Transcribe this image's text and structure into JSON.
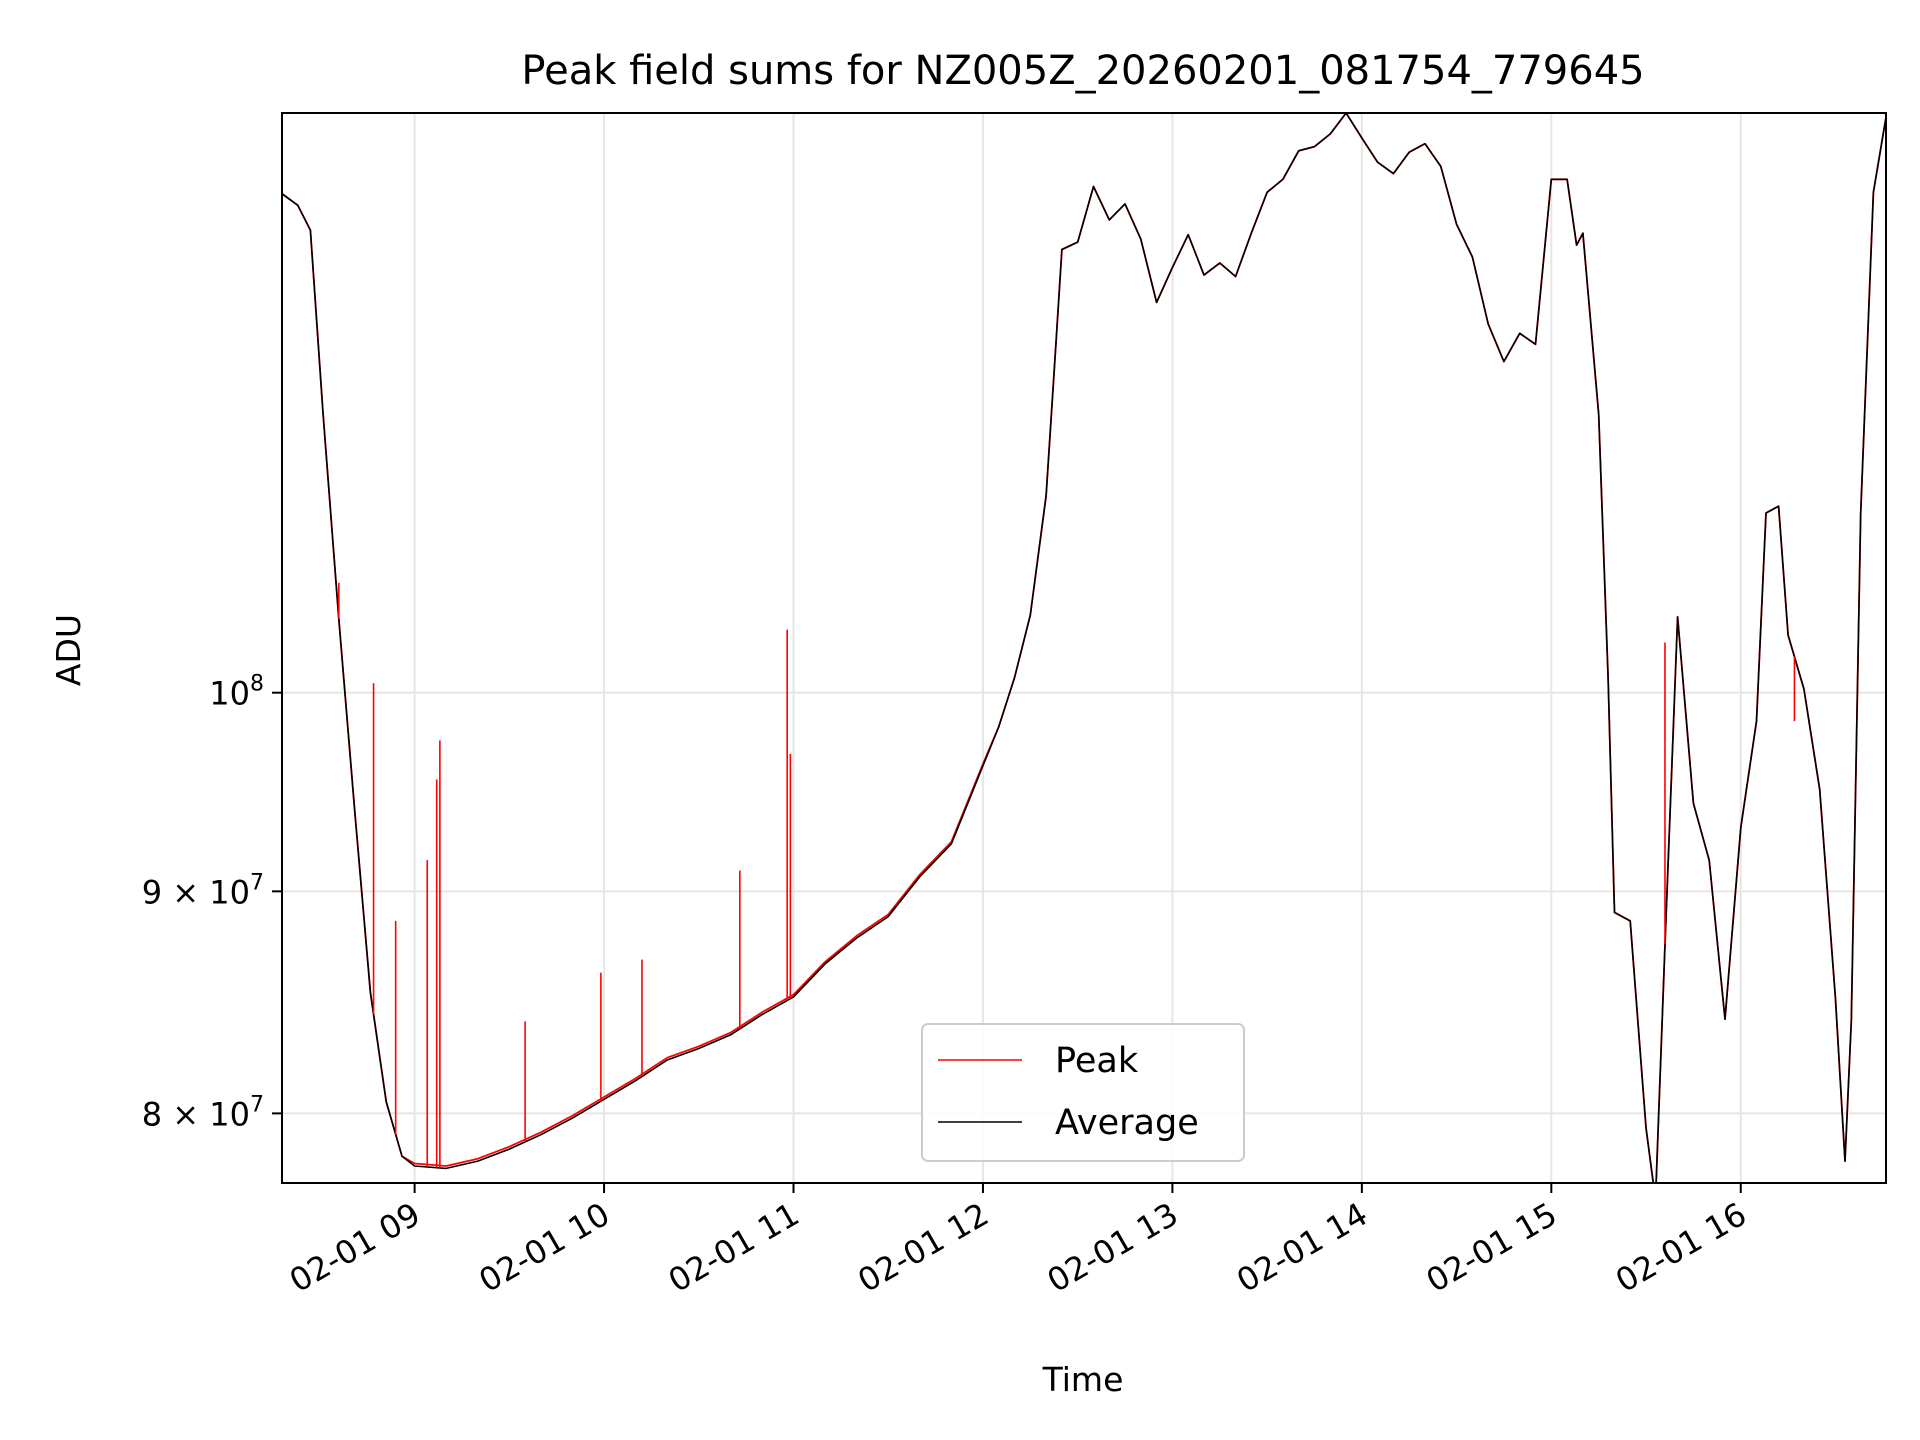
{
  "chart_data": {
    "type": "line",
    "title": "Peak field sums for NZ005Z_20260201_081754_779645",
    "xlabel": "Time",
    "ylabel": "ADU",
    "yscale": "log",
    "xlim": [
      "02-01 08:18",
      "02-01 16:46"
    ],
    "ylim": [
      77100000,
      136000000
    ],
    "grid": true,
    "legend_position": "lower center",
    "x_ticks": [
      {
        "value": "02-01 09:00",
        "label": "02-01 09"
      },
      {
        "value": "02-01 10:00",
        "label": "02-01 10"
      },
      {
        "value": "02-01 11:00",
        "label": "02-01 11"
      },
      {
        "value": "02-01 12:00",
        "label": "02-01 12"
      },
      {
        "value": "02-01 13:00",
        "label": "02-01 13"
      },
      {
        "value": "02-01 14:00",
        "label": "02-01 14"
      },
      {
        "value": "02-01 15:00",
        "label": "02-01 15"
      },
      {
        "value": "02-01 16:00",
        "label": "02-01 16"
      }
    ],
    "y_ticks": [
      {
        "value": 80000000,
        "label": "8 × 10",
        "exp": "7"
      },
      {
        "value": 90000000,
        "label": "9 × 10",
        "exp": "7"
      },
      {
        "value": 100000000,
        "label": "10",
        "exp": "8"
      }
    ],
    "series": [
      {
        "name": "Peak",
        "color": "#ff0000",
        "points": [
          [
            "02-01 08:18",
            130300000
          ],
          [
            "02-01 08:23",
            129500000
          ],
          [
            "02-01 08:27",
            127800000
          ],
          [
            "02-01 08:31",
            116000000
          ],
          [
            "02-01 08:36",
            104000000
          ],
          [
            "02-01 08:41",
            94000000
          ],
          [
            "02-01 08:46",
            85300000
          ],
          [
            "02-01 08:51",
            80500000
          ],
          [
            "02-01 08:56",
            78200000
          ],
          [
            "02-01 09:00",
            77900000
          ],
          [
            "02-01 09:10",
            77800000
          ],
          [
            "02-01 09:20",
            78100000
          ],
          [
            "02-01 09:30",
            78600000
          ],
          [
            "02-01 09:40",
            79200000
          ],
          [
            "02-01 09:50",
            79900000
          ],
          [
            "02-01 10:00",
            80700000
          ],
          [
            "02-01 10:10",
            81500000
          ],
          [
            "02-01 10:20",
            82400000
          ],
          [
            "02-01 10:30",
            82900000
          ],
          [
            "02-01 10:40",
            83500000
          ],
          [
            "02-01 10:50",
            84400000
          ],
          [
            "02-01 11:00",
            85200000
          ],
          [
            "02-01 11:10",
            86700000
          ],
          [
            "02-01 11:20",
            87900000
          ],
          [
            "02-01 11:30",
            88900000
          ],
          [
            "02-01 11:40",
            90800000
          ],
          [
            "02-01 11:50",
            92400000
          ],
          [
            "02-01 12:00",
            96300000
          ],
          [
            "02-01 12:05",
            98200000
          ],
          [
            "02-01 12:10",
            100800000
          ],
          [
            "02-01 12:15",
            104200000
          ],
          [
            "02-01 12:20",
            111000000
          ],
          [
            "02-01 12:23",
            120000000
          ],
          [
            "02-01 12:25",
            126500000
          ],
          [
            "02-01 12:30",
            127000000
          ],
          [
            "02-01 12:35",
            130800000
          ],
          [
            "02-01 12:40",
            128500000
          ],
          [
            "02-01 12:45",
            129600000
          ],
          [
            "02-01 12:50",
            127200000
          ],
          [
            "02-01 12:55",
            123000000
          ],
          [
            "02-01 13:00",
            125300000
          ],
          [
            "02-01 13:05",
            127500000
          ],
          [
            "02-01 13:10",
            124800000
          ],
          [
            "02-01 13:15",
            125600000
          ],
          [
            "02-01 13:20",
            124700000
          ],
          [
            "02-01 13:25",
            127600000
          ],
          [
            "02-01 13:30",
            130400000
          ],
          [
            "02-01 13:35",
            131300000
          ],
          [
            "02-01 13:40",
            133300000
          ],
          [
            "02-01 13:45",
            133600000
          ],
          [
            "02-01 13:50",
            134500000
          ],
          [
            "02-01 13:55",
            136000000
          ],
          [
            "02-01 14:00",
            134200000
          ],
          [
            "02-01 14:05",
            132500000
          ],
          [
            "02-01 14:10",
            131700000
          ],
          [
            "02-01 14:15",
            133200000
          ],
          [
            "02-01 14:20",
            133800000
          ],
          [
            "02-01 14:25",
            132200000
          ],
          [
            "02-01 14:30",
            128200000
          ],
          [
            "02-01 14:35",
            126000000
          ],
          [
            "02-01 14:40",
            121600000
          ],
          [
            "02-01 14:45",
            119200000
          ],
          [
            "02-01 14:50",
            121000000
          ],
          [
            "02-01 14:55",
            120300000
          ],
          [
            "02-01 15:00",
            131300000
          ],
          [
            "02-01 15:05",
            131300000
          ],
          [
            "02-01 15:08",
            126800000
          ],
          [
            "02-01 15:10",
            127600000
          ],
          [
            "02-01 15:15",
            115900000
          ],
          [
            "02-01 15:18",
            100800000
          ],
          [
            "02-01 15:20",
            89000000
          ],
          [
            "02-01 15:25",
            88600000
          ],
          [
            "02-01 15:30",
            79400000
          ],
          [
            "02-01 15:33",
            76400000
          ],
          [
            "02-01 15:36",
            87500000
          ],
          [
            "02-01 15:40",
            104100000
          ],
          [
            "02-01 15:45",
            94300000
          ],
          [
            "02-01 15:50",
            91500000
          ],
          [
            "02-01 15:55",
            84100000
          ],
          [
            "02-01 16:00",
            93100000
          ],
          [
            "02-01 16:05",
            98500000
          ],
          [
            "02-01 16:08",
            110000000
          ],
          [
            "02-01 16:12",
            110400000
          ],
          [
            "02-01 16:15",
            103100000
          ],
          [
            "02-01 16:20",
            100200000
          ],
          [
            "02-01 16:25",
            95000000
          ],
          [
            "02-01 16:30",
            85000000
          ],
          [
            "02-01 16:33",
            78000000
          ],
          [
            "02-01 16:35",
            84000000
          ],
          [
            "02-01 16:38",
            110000000
          ],
          [
            "02-01 16:42",
            130400000
          ],
          [
            "02-01 16:46",
            135700000
          ]
        ]
      },
      {
        "name": "Average",
        "color": "#000000",
        "points": [
          [
            "02-01 08:18",
            130300000
          ],
          [
            "02-01 08:23",
            129500000
          ],
          [
            "02-01 08:27",
            127800000
          ],
          [
            "02-01 08:31",
            116000000
          ],
          [
            "02-01 08:36",
            104000000
          ],
          [
            "02-01 08:41",
            94000000
          ],
          [
            "02-01 08:46",
            85300000
          ],
          [
            "02-01 08:51",
            80500000
          ],
          [
            "02-01 08:56",
            78200000
          ],
          [
            "02-01 09:00",
            77800000
          ],
          [
            "02-01 09:10",
            77700000
          ],
          [
            "02-01 09:20",
            78000000
          ],
          [
            "02-01 09:30",
            78500000
          ],
          [
            "02-01 09:40",
            79100000
          ],
          [
            "02-01 09:50",
            79800000
          ],
          [
            "02-01 10:00",
            80600000
          ],
          [
            "02-01 10:10",
            81400000
          ],
          [
            "02-01 10:20",
            82300000
          ],
          [
            "02-01 10:30",
            82800000
          ],
          [
            "02-01 10:40",
            83400000
          ],
          [
            "02-01 10:50",
            84300000
          ],
          [
            "02-01 11:00",
            85100000
          ],
          [
            "02-01 11:10",
            86600000
          ],
          [
            "02-01 11:20",
            87800000
          ],
          [
            "02-01 11:30",
            88800000
          ],
          [
            "02-01 11:40",
            90700000
          ],
          [
            "02-01 11:50",
            92300000
          ],
          [
            "02-01 12:00",
            96200000
          ],
          [
            "02-01 12:05",
            98200000
          ],
          [
            "02-01 12:10",
            100800000
          ],
          [
            "02-01 12:15",
            104200000
          ],
          [
            "02-01 12:20",
            111000000
          ],
          [
            "02-01 12:23",
            120000000
          ],
          [
            "02-01 12:25",
            126500000
          ],
          [
            "02-01 12:30",
            127000000
          ],
          [
            "02-01 12:35",
            130800000
          ],
          [
            "02-01 12:40",
            128500000
          ],
          [
            "02-01 12:45",
            129600000
          ],
          [
            "02-01 12:50",
            127200000
          ],
          [
            "02-01 12:55",
            123000000
          ],
          [
            "02-01 13:00",
            125300000
          ],
          [
            "02-01 13:05",
            127500000
          ],
          [
            "02-01 13:10",
            124800000
          ],
          [
            "02-01 13:15",
            125600000
          ],
          [
            "02-01 13:20",
            124700000
          ],
          [
            "02-01 13:25",
            127600000
          ],
          [
            "02-01 13:30",
            130400000
          ],
          [
            "02-01 13:35",
            131300000
          ],
          [
            "02-01 13:40",
            133300000
          ],
          [
            "02-01 13:45",
            133600000
          ],
          [
            "02-01 13:50",
            134500000
          ],
          [
            "02-01 13:55",
            136000000
          ],
          [
            "02-01 14:00",
            134200000
          ],
          [
            "02-01 14:05",
            132500000
          ],
          [
            "02-01 14:10",
            131700000
          ],
          [
            "02-01 14:15",
            133200000
          ],
          [
            "02-01 14:20",
            133800000
          ],
          [
            "02-01 14:25",
            132200000
          ],
          [
            "02-01 14:30",
            128200000
          ],
          [
            "02-01 14:35",
            126000000
          ],
          [
            "02-01 14:40",
            121600000
          ],
          [
            "02-01 14:45",
            119200000
          ],
          [
            "02-01 14:50",
            121000000
          ],
          [
            "02-01 14:55",
            120300000
          ],
          [
            "02-01 15:00",
            131300000
          ],
          [
            "02-01 15:05",
            131300000
          ],
          [
            "02-01 15:08",
            126800000
          ],
          [
            "02-01 15:10",
            127600000
          ],
          [
            "02-01 15:15",
            115900000
          ],
          [
            "02-01 15:18",
            100800000
          ],
          [
            "02-01 15:20",
            89000000
          ],
          [
            "02-01 15:25",
            88600000
          ],
          [
            "02-01 15:30",
            79400000
          ],
          [
            "02-01 15:33",
            76400000
          ],
          [
            "02-01 15:36",
            87500000
          ],
          [
            "02-01 15:40",
            104100000
          ],
          [
            "02-01 15:45",
            94300000
          ],
          [
            "02-01 15:50",
            91500000
          ],
          [
            "02-01 15:55",
            84100000
          ],
          [
            "02-01 16:00",
            93100000
          ],
          [
            "02-01 16:05",
            98500000
          ],
          [
            "02-01 16:08",
            110000000
          ],
          [
            "02-01 16:12",
            110400000
          ],
          [
            "02-01 16:15",
            103100000
          ],
          [
            "02-01 16:20",
            100200000
          ],
          [
            "02-01 16:25",
            95000000
          ],
          [
            "02-01 16:30",
            85000000
          ],
          [
            "02-01 16:33",
            78000000
          ],
          [
            "02-01 16:35",
            84000000
          ],
          [
            "02-01 16:38",
            110000000
          ],
          [
            "02-01 16:42",
            130400000
          ],
          [
            "02-01 16:46",
            135700000
          ]
        ]
      }
    ],
    "peak_spikes": [
      [
        "02-01 08:36",
        106000000
      ],
      [
        "02-01 08:47",
        100500000
      ],
      [
        "02-01 08:54",
        88600000
      ],
      [
        "02-01 09:04",
        91500000
      ],
      [
        "02-01 09:07",
        95500000
      ],
      [
        "02-01 09:08",
        97500000
      ],
      [
        "02-01 09:35",
        84000000
      ],
      [
        "02-01 09:59",
        86200000
      ],
      [
        "02-01 10:12",
        86800000
      ],
      [
        "02-01 10:43",
        91000000
      ],
      [
        "02-01 10:58",
        103400000
      ],
      [
        "02-01 10:59",
        96800000
      ],
      [
        "02-01 15:36",
        102700000
      ],
      [
        "02-01 16:17",
        98500000
      ]
    ]
  }
}
